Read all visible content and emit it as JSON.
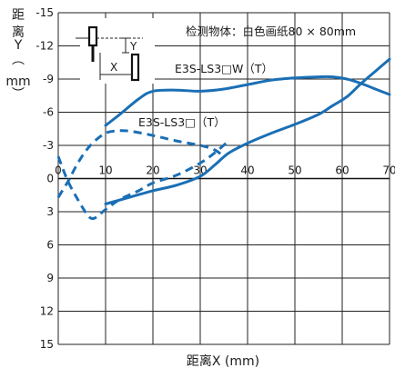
{
  "chart_data": {
    "type": "line",
    "y_axis_label_chars": [
      "距",
      "离",
      "Y",
      "︵",
      "mm",
      "︶"
    ],
    "xlabel": "距离X (mm)",
    "annotation": "检测物体：白色画纸80 × 80mm",
    "xlim": [
      0,
      70
    ],
    "ylim": [
      -15,
      15
    ],
    "y_inverted": true,
    "grid": true,
    "x_ticks": [
      0,
      10,
      20,
      30,
      40,
      50,
      60,
      70
    ],
    "y_ticks": [
      -15,
      -12,
      -9,
      -6,
      -3,
      0,
      3,
      6,
      9,
      12,
      15
    ],
    "x_tick_labels": [
      "0",
      "10",
      "20",
      "30",
      "40",
      "50",
      "60",
      "70"
    ],
    "y_tick_labels": [
      "-15",
      "-12",
      "-9",
      "-6",
      "-3",
      "0",
      "3",
      "6",
      "9",
      "12",
      "15"
    ],
    "line_color": "#1a6fb5",
    "diagram_labels": {
      "y": "Y",
      "x": "X"
    },
    "series": [
      {
        "name": "E3S-LS3□W（T）",
        "style": "solid",
        "upper": [
          [
            10,
            -4.8
          ],
          [
            13,
            -5.8
          ],
          [
            17,
            -7.2
          ],
          [
            20,
            -7.9
          ],
          [
            25,
            -8.0
          ],
          [
            30,
            -7.9
          ],
          [
            35,
            -8.1
          ],
          [
            40,
            -8.5
          ],
          [
            45,
            -8.9
          ],
          [
            50,
            -9.1
          ],
          [
            55,
            -9.2
          ],
          [
            58,
            -9.2
          ],
          [
            61,
            -9.0
          ],
          [
            64,
            -8.6
          ],
          [
            67,
            -8.1
          ],
          [
            70,
            -7.6
          ]
        ],
        "lower": [
          [
            10,
            2.3
          ],
          [
            15,
            1.7
          ],
          [
            20,
            1.1
          ],
          [
            25,
            0.6
          ],
          [
            30,
            -0.2
          ],
          [
            33,
            -1.2
          ],
          [
            36,
            -2.3
          ],
          [
            40,
            -3.2
          ],
          [
            45,
            -4.1
          ],
          [
            50,
            -4.9
          ],
          [
            55,
            -5.8
          ],
          [
            58,
            -6.6
          ],
          [
            61,
            -7.4
          ],
          [
            64,
            -8.6
          ],
          [
            67,
            -9.7
          ],
          [
            70,
            -10.8
          ]
        ]
      },
      {
        "name": "E3S-LS3□（T）",
        "style": "dashed",
        "upper": [
          [
            0,
            -2.0
          ],
          [
            2,
            0.2
          ],
          [
            4,
            1.8
          ],
          [
            6,
            3.2
          ],
          [
            7,
            3.6
          ],
          [
            8,
            3.5
          ],
          [
            10,
            2.8
          ],
          [
            13,
            1.9
          ],
          [
            17,
            1.1
          ],
          [
            20,
            0.4
          ],
          [
            25,
            -0.3
          ],
          [
            30,
            -1.4
          ],
          [
            33,
            -2.3
          ],
          [
            36,
            -3.4
          ]
        ],
        "lower": [
          [
            0,
            1.7
          ],
          [
            2,
            0.3
          ],
          [
            4,
            -1.3
          ],
          [
            6,
            -2.6
          ],
          [
            8,
            -3.5
          ],
          [
            10,
            -4.1
          ],
          [
            12,
            -4.3
          ],
          [
            15,
            -4.3
          ],
          [
            20,
            -3.9
          ],
          [
            25,
            -3.4
          ],
          [
            30,
            -3.0
          ],
          [
            33,
            -2.6
          ],
          [
            35,
            -2.0
          ]
        ]
      }
    ]
  }
}
